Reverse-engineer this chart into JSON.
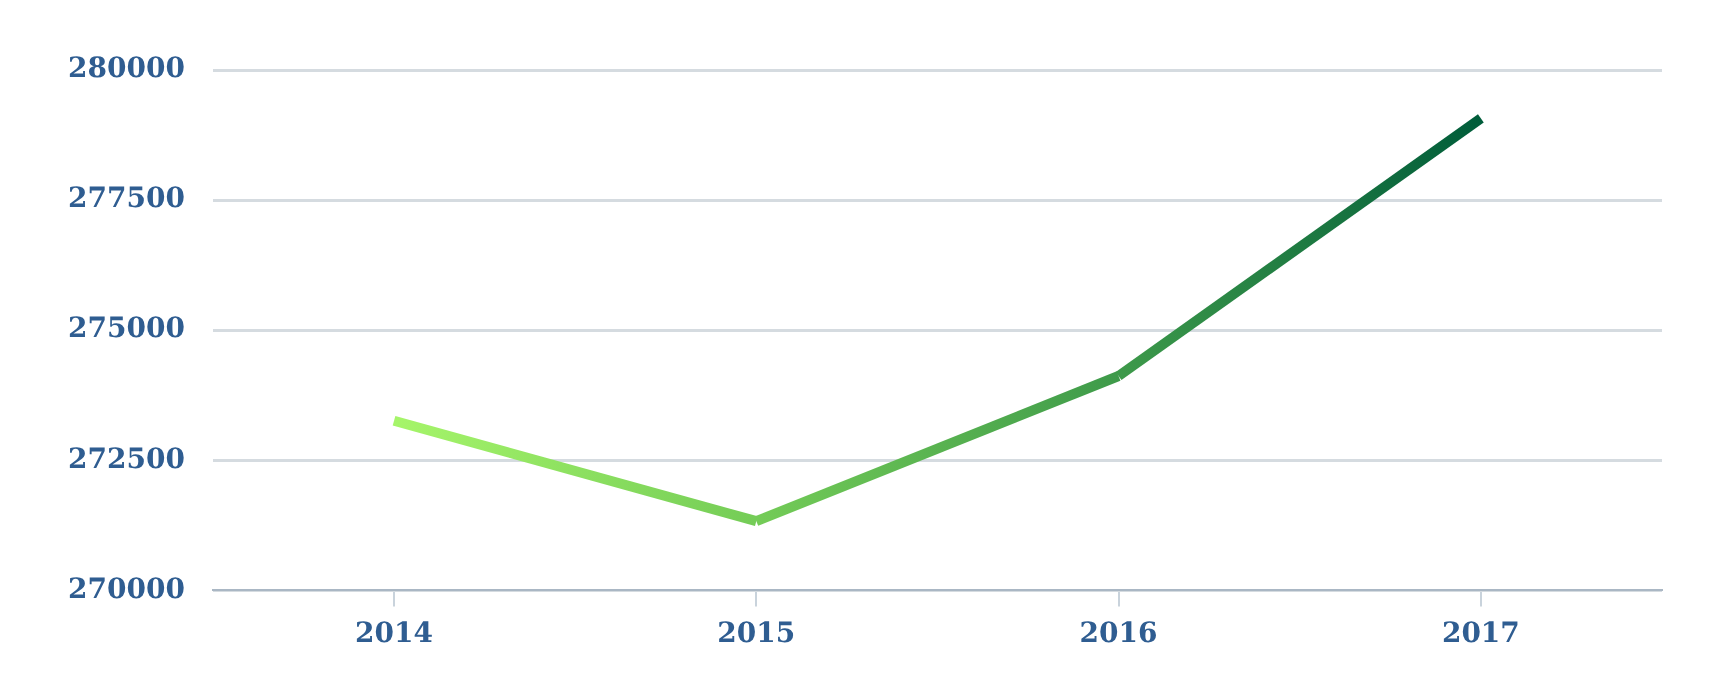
{
  "chart_data": {
    "type": "line",
    "categories": [
      "2014",
      "2015",
      "2016",
      "2017"
    ],
    "series": [
      {
        "colors": [
          "#a6f56a",
          "#74cc57",
          "#3e9a4a",
          "#005c3a"
        ],
        "values": [
          273260,
          271330,
          274120,
          279070
        ]
      }
    ],
    "ylim": [
      270000,
      280000
    ],
    "yticks": [
      270000,
      272500,
      275000,
      277500,
      280000
    ],
    "grid": "y",
    "legend": false,
    "marker": "none",
    "line_style": "solid"
  }
}
